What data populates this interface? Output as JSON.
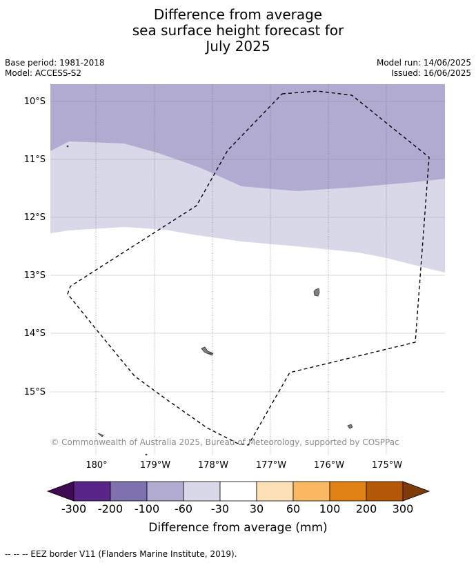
{
  "title": {
    "line1": "Difference from average",
    "line2": "sea surface height forecast for",
    "line3": "July 2025"
  },
  "meta": {
    "base_period": "Base period: 1981-2018",
    "model": "Model: ACCESS-S2",
    "model_run": "Model run: 14/06/2025",
    "issued": "Issued: 16/06/2025"
  },
  "map": {
    "lat_labels": [
      "10°S",
      "11°S",
      "12°S",
      "13°S",
      "14°S",
      "15°S"
    ],
    "lon_labels": [
      "180°",
      "179°W",
      "178°W",
      "177°W",
      "176°W",
      "175°W"
    ],
    "copyright": "© Commonwealth of Australia 2025, Bureau of Meteorology, supported by COSPPac",
    "colors": {
      "band_-100_-60": "#b1abd1",
      "band_-60_-30": "#d8d8e8",
      "band_-30_30": "#ffffff"
    }
  },
  "colorbar": {
    "ticks": [
      "-300",
      "-200",
      "-100",
      "-60",
      "-30",
      "30",
      "60",
      "100",
      "200",
      "300"
    ],
    "colors": [
      "#3f0a51",
      "#5a2589",
      "#7f71ad",
      "#b1abd1",
      "#d8d8e8",
      "#ffffff",
      "#fee0b6",
      "#fbb862",
      "#e08214",
      "#b35806",
      "#7e3b08"
    ],
    "label": "Difference from average (mm)"
  },
  "footnote": "--  --  -- EEZ border V11 (Flanders Marine Institute, 2019)."
}
